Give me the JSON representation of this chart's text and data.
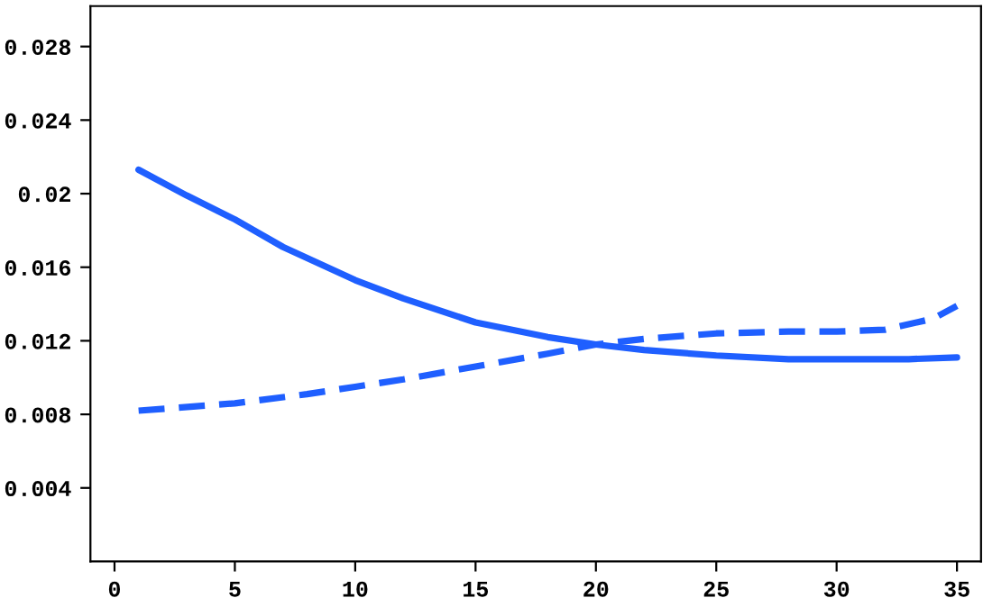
{
  "chart_data": {
    "type": "line",
    "xlim": [
      -1,
      36
    ],
    "ylim": [
      0,
      0.0302
    ],
    "xticks": [
      0,
      5,
      10,
      15,
      20,
      25,
      30,
      35
    ],
    "yticks": [
      {
        "value": 0.004,
        "label": "0.004"
      },
      {
        "value": 0.008,
        "label": "0.008"
      },
      {
        "value": 0.012,
        "label": "0.012"
      },
      {
        "value": 0.016,
        "label": "0.016"
      },
      {
        "value": 0.02,
        "label": "0.02"
      },
      {
        "value": 0.024,
        "label": "0.024"
      },
      {
        "value": 0.028,
        "label": "0.028"
      }
    ],
    "grid": false,
    "legend": false,
    "marker": "none",
    "series": [
      {
        "color": "#1f5fff",
        "line_style": "solid",
        "x": [
          1,
          3,
          5,
          7,
          10,
          12,
          15,
          18,
          20,
          22,
          25,
          28,
          30,
          33,
          35
        ],
        "values": [
          0.0213,
          0.0199,
          0.0186,
          0.0171,
          0.0153,
          0.0143,
          0.013,
          0.0122,
          0.0118,
          0.0115,
          0.0112,
          0.011,
          0.011,
          0.011,
          0.0111
        ]
      },
      {
        "color": "#1f5fff",
        "line_style": "dashed",
        "x": [
          1,
          5,
          8,
          10,
          12,
          15,
          18,
          20,
          22,
          25,
          28,
          30,
          32,
          34,
          35
        ],
        "values": [
          0.0082,
          0.0086,
          0.0091,
          0.0095,
          0.0099,
          0.0106,
          0.0113,
          0.0118,
          0.0121,
          0.0124,
          0.0125,
          0.0125,
          0.0126,
          0.0132,
          0.0139
        ]
      }
    ]
  }
}
